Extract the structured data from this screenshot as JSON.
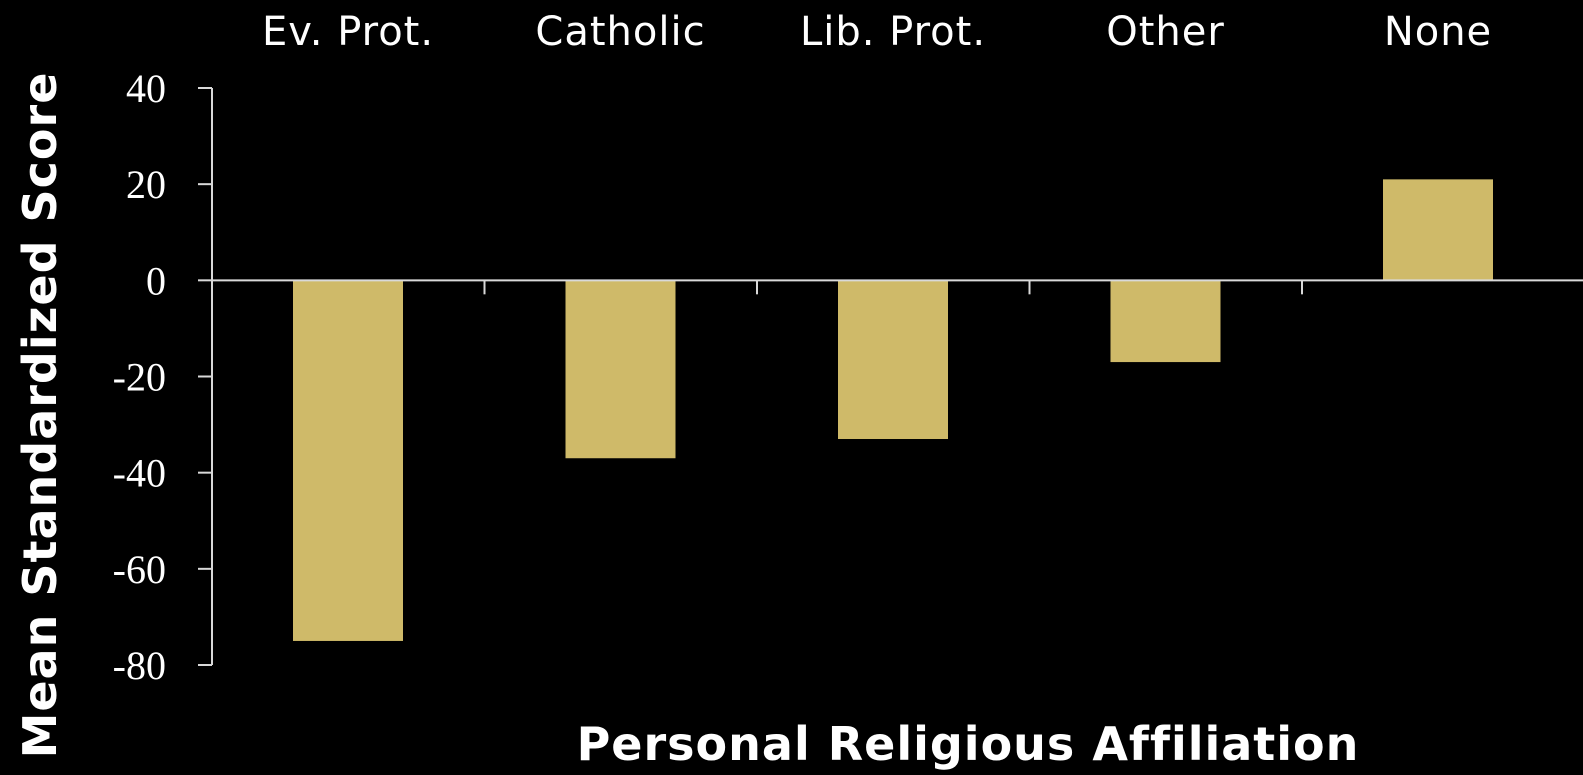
{
  "chart_data": {
    "type": "bar",
    "categories": [
      "Ev. Prot.",
      "Catholic",
      "Lib. Prot.",
      "Other",
      "None"
    ],
    "values": [
      -75,
      -37,
      -33,
      -17,
      21
    ],
    "ylabel": "Mean Standardized Score",
    "xlabel": "Personal Religious Affiliation",
    "ylim": [
      -80,
      40
    ],
    "yticks": [
      "40",
      "20",
      "0",
      "-20",
      "-40",
      "-60",
      "-80"
    ],
    "ytick_values": [
      40,
      20,
      0,
      -20,
      -40,
      -60,
      -80
    ],
    "category_labels_position": "top",
    "grid": false,
    "bar_color": "#cfba69",
    "axis_color": "#d9d9d9",
    "background": "#000000"
  }
}
